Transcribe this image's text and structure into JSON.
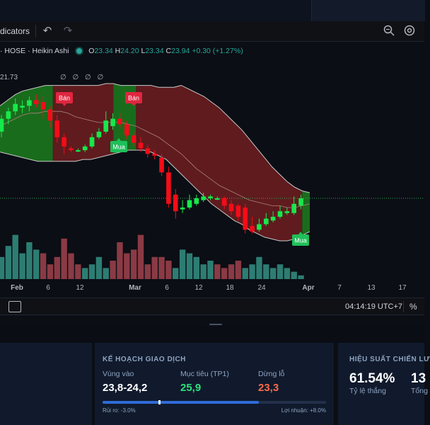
{
  "toolbar": {
    "indicators_label": "dicators",
    "undo_icon": "undo-icon",
    "redo_icon": "redo-icon",
    "zoom_icon": "zoom-search-icon",
    "settings_icon": "gear-icon"
  },
  "legend": {
    "symbol": "· HOSE · Heikin Ashi",
    "o_label": "O",
    "o_value": "23.34",
    "h_label": "H",
    "h_value": "24.20",
    "l_label": "L",
    "l_value": "23.34",
    "c_label": "C",
    "c_value": "23.94",
    "change": "+0.30 (+1.27%)"
  },
  "indicator_line": {
    "value": "21.73",
    "placeholders": "∅ ∅ ∅ ∅"
  },
  "signals": {
    "sell_label": "Bán",
    "buy_label": "Mua"
  },
  "colors": {
    "up": "#17e84b",
    "down": "#f50c18",
    "vol_up": "#2d7d73",
    "vol_down": "#8a3a44",
    "bull_zone": "#1d7a1f",
    "bear_zone": "#6b1e20",
    "sell_badge": "#e0263f",
    "buy_badge": "#1fbf5a"
  },
  "chart_data": {
    "type": "candlestick",
    "x_ticks": [
      "Feb",
      "6",
      "12",
      "Mar",
      "6",
      "12",
      "18",
      "24",
      "Apr",
      "7",
      "13",
      "17"
    ],
    "candles": [
      {
        "o": 22.9,
        "c": 23.6,
        "h": 23.8,
        "l": 22.6
      },
      {
        "o": 23.6,
        "c": 24.0,
        "h": 24.2,
        "l": 23.3
      },
      {
        "o": 24.0,
        "c": 24.4,
        "h": 24.7,
        "l": 23.8
      },
      {
        "o": 24.2,
        "c": 24.3,
        "h": 24.6,
        "l": 23.9
      },
      {
        "o": 24.3,
        "c": 24.6,
        "h": 24.8,
        "l": 24.0
      },
      {
        "o": 24.6,
        "c": 24.4,
        "h": 24.9,
        "l": 24.2
      },
      {
        "o": 24.5,
        "c": 24.1,
        "h": 24.8,
        "l": 23.6
      },
      {
        "o": 24.1,
        "c": 23.5,
        "h": 24.3,
        "l": 23.1
      },
      {
        "o": 23.5,
        "c": 22.6,
        "h": 23.8,
        "l": 22.3
      },
      {
        "o": 22.6,
        "c": 22.1,
        "h": 22.8,
        "l": 21.7
      },
      {
        "o": 22.0,
        "c": 21.9,
        "h": 22.1,
        "l": 21.8
      },
      {
        "o": 21.9,
        "c": 21.9,
        "h": 22.0,
        "l": 21.8
      },
      {
        "o": 21.9,
        "c": 22.1,
        "h": 22.2,
        "l": 21.8
      },
      {
        "o": 22.1,
        "c": 22.6,
        "h": 22.8,
        "l": 22.0
      },
      {
        "o": 22.6,
        "c": 22.9,
        "h": 23.1,
        "l": 22.5
      },
      {
        "o": 22.9,
        "c": 23.5,
        "h": 24.0,
        "l": 22.8
      },
      {
        "o": 23.2,
        "c": 23.6,
        "h": 23.9,
        "l": 23.0
      },
      {
        "o": 23.6,
        "c": 23.3,
        "h": 23.9,
        "l": 23.1
      },
      {
        "o": 23.3,
        "c": 22.7,
        "h": 23.5,
        "l": 22.5
      },
      {
        "o": 22.7,
        "c": 22.3,
        "h": 22.9,
        "l": 22.1
      },
      {
        "o": 22.3,
        "c": 22.0,
        "h": 22.6,
        "l": 21.8
      },
      {
        "o": 22.0,
        "c": 21.7,
        "h": 22.2,
        "l": 21.5
      },
      {
        "o": 21.7,
        "c": 21.6,
        "h": 21.9,
        "l": 21.4
      },
      {
        "o": 21.5,
        "c": 20.7,
        "h": 21.7,
        "l": 20.5
      },
      {
        "o": 20.7,
        "c": 19.0,
        "h": 21.0,
        "l": 18.8
      },
      {
        "o": 19.5,
        "c": 18.6,
        "h": 19.8,
        "l": 18.2
      },
      {
        "o": 18.7,
        "c": 18.8,
        "h": 19.2,
        "l": 18.5
      },
      {
        "o": 18.8,
        "c": 19.2,
        "h": 19.5,
        "l": 18.7
      },
      {
        "o": 19.0,
        "c": 19.3,
        "h": 19.5,
        "l": 18.9
      },
      {
        "o": 19.2,
        "c": 19.4,
        "h": 19.6,
        "l": 19.1
      },
      {
        "o": 19.3,
        "c": 19.4,
        "h": 19.5,
        "l": 19.2
      },
      {
        "o": 19.3,
        "c": 19.3,
        "h": 19.4,
        "l": 19.2
      },
      {
        "o": 19.3,
        "c": 18.9,
        "h": 19.4,
        "l": 18.7
      },
      {
        "o": 19.0,
        "c": 18.6,
        "h": 19.2,
        "l": 18.4
      },
      {
        "o": 18.9,
        "c": 18.3,
        "h": 19.0,
        "l": 18.1
      },
      {
        "o": 18.8,
        "c": 17.6,
        "h": 19.0,
        "l": 17.4
      },
      {
        "o": 17.8,
        "c": 17.5,
        "h": 18.3,
        "l": 17.4
      },
      {
        "o": 17.6,
        "c": 17.9,
        "h": 18.2,
        "l": 17.5
      },
      {
        "o": 17.9,
        "c": 18.2,
        "h": 18.5,
        "l": 17.8
      },
      {
        "o": 18.1,
        "c": 18.3,
        "h": 18.6,
        "l": 18.0
      },
      {
        "o": 18.3,
        "c": 18.6,
        "h": 18.9,
        "l": 18.2
      },
      {
        "o": 18.5,
        "c": 18.6,
        "h": 18.8,
        "l": 18.4
      },
      {
        "o": 18.5,
        "c": 19.0,
        "h": 19.4,
        "l": 18.4
      },
      {
        "o": 18.9,
        "c": 19.3,
        "h": 19.5,
        "l": 18.7
      }
    ],
    "volume": [
      6,
      9,
      12,
      7,
      10,
      8,
      7,
      4,
      6,
      11,
      7,
      4,
      3,
      4,
      6,
      3,
      5,
      10,
      7,
      8,
      12,
      4,
      6,
      6,
      5,
      3,
      8,
      7,
      6,
      4,
      5,
      4,
      3,
      4,
      5,
      3,
      4,
      6,
      4,
      3,
      4,
      3,
      2,
      1
    ],
    "volume_up": [
      true,
      true,
      true,
      true,
      true,
      true,
      false,
      false,
      false,
      false,
      false,
      false,
      true,
      true,
      true,
      true,
      false,
      false,
      false,
      false,
      false,
      false,
      false,
      false,
      false,
      true,
      true,
      true,
      true,
      true,
      true,
      false,
      false,
      false,
      false,
      true,
      true,
      true,
      true,
      true,
      true,
      true,
      true,
      true
    ],
    "upper_band": [
      24.3,
      24.6,
      24.9,
      25.1,
      25.2,
      25.3,
      25.4,
      25.4,
      25.4,
      25.4,
      25.4,
      25.4,
      25.4,
      25.4,
      25.5,
      25.5,
      25.4,
      25.4,
      25.4,
      25.4,
      25.4,
      25.3,
      25.3,
      25.3,
      25.4,
      25.2,
      25.0,
      24.8,
      24.5,
      24.2,
      23.8,
      23.4,
      23.0,
      22.5,
      22.0,
      21.5,
      21.0,
      20.6,
      20.2,
      19.9,
      19.7,
      19.6
    ],
    "lower_band": [
      21.8,
      21.7,
      21.6,
      21.5,
      21.4,
      21.3,
      21.3,
      21.3,
      21.3,
      21.3,
      21.3,
      21.4,
      21.4,
      21.5,
      21.6,
      21.7,
      21.8,
      21.9,
      21.9,
      21.9,
      21.8,
      21.6,
      21.4,
      21.0,
      20.6,
      20.2,
      19.8,
      19.4,
      19.0,
      18.7,
      18.4,
      18.1,
      17.9,
      17.6,
      17.4,
      17.2,
      17.1,
      17.0,
      17.0,
      17.1,
      17.3,
      17.5
    ],
    "mid_line": [
      23.2,
      23.4,
      23.6,
      23.8,
      23.9,
      23.9,
      24.0,
      24.0,
      24.0,
      23.9,
      23.7,
      23.6,
      23.5,
      23.4,
      23.4,
      23.4,
      23.4,
      23.3,
      23.2,
      23.0,
      22.8,
      22.6,
      22.3,
      22.0,
      21.7,
      21.3,
      20.9,
      20.6,
      20.3,
      20.0,
      19.8,
      19.6,
      19.4,
      19.2,
      19.1,
      19.0,
      18.9,
      18.9,
      18.8,
      18.8,
      18.9,
      19.0
    ],
    "zones": [
      {
        "from": 0,
        "to": 10,
        "kind": "bull"
      },
      {
        "from": 10,
        "to": 21,
        "kind": "bear"
      },
      {
        "from": 21,
        "to": 25,
        "kind": "bull"
      },
      {
        "from": 25,
        "to": 55,
        "kind": "bear"
      },
      {
        "from": 55,
        "to": 57,
        "kind": "bull"
      }
    ],
    "signals": [
      {
        "at": 11,
        "type": "sell"
      },
      {
        "at": 24,
        "type": "sell"
      },
      {
        "at": 22,
        "type": "buy"
      },
      {
        "at": 56,
        "type": "buy"
      }
    ],
    "last_price": 19.3
  },
  "status_bar": {
    "time": "04:14:19 UTC+7",
    "percent_label": "%"
  },
  "plan": {
    "title": "KẾ HOẠCH GIAO DỊCH",
    "entry_label": "Vùng vào",
    "entry_value": "23,8-24,2",
    "target_label": "Mục tiêu (TP1)",
    "target_value": "25,9",
    "stop_label": "Dừng lỗ",
    "stop_value": "23,3",
    "risk_text": "Rủi ro: -3.0%",
    "reward_text": "Lợi nhuận: +8.0%",
    "risk_reward_fraction": 0.7
  },
  "performance": {
    "title": "HIỆU SUẤT CHIẾN LƯ",
    "win_rate_value": "61.54%",
    "win_rate_label": "Tỷ lệ thắng",
    "total_value": "13",
    "total_label": "Tổng"
  }
}
